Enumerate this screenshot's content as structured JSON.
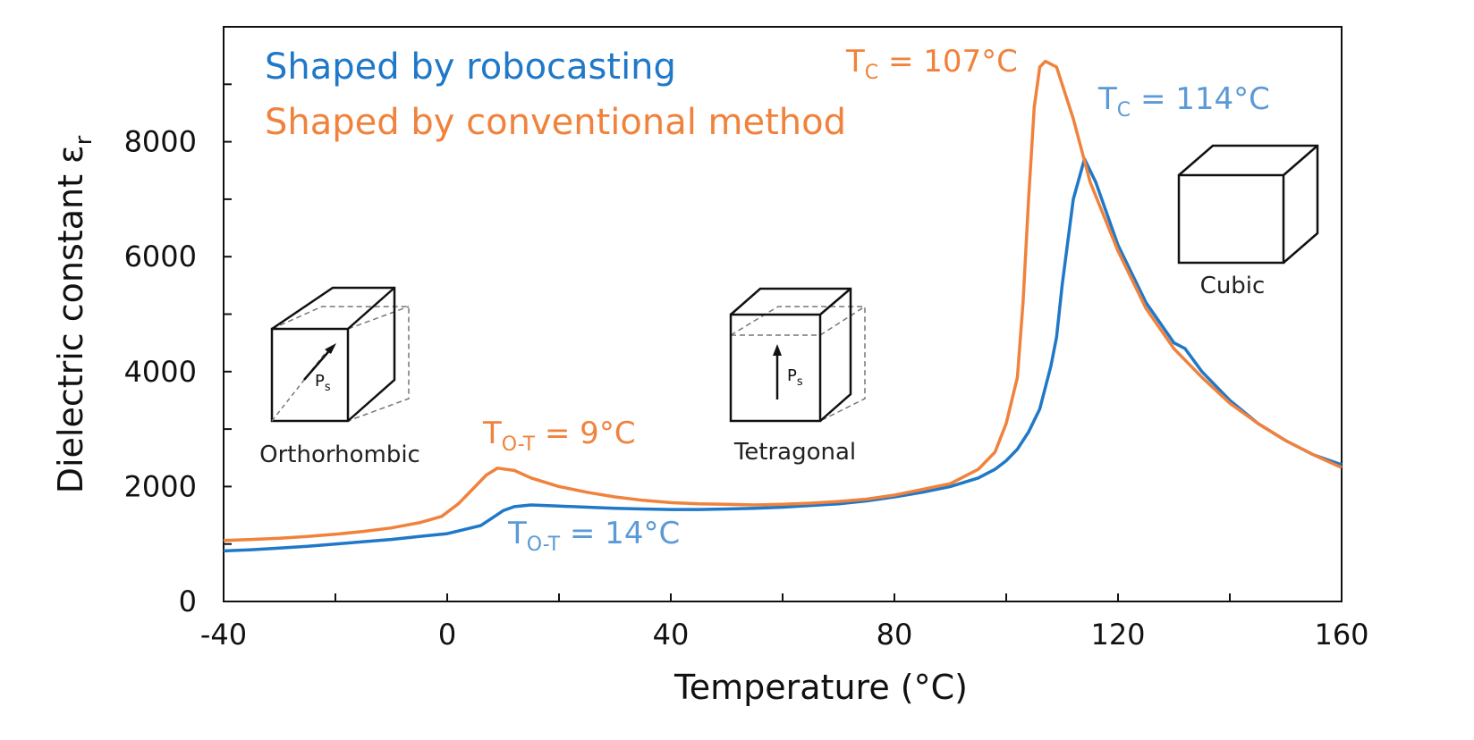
{
  "colors": {
    "robocasting": "#1f78c8",
    "conventional": "#f0823c",
    "axis": "#111111"
  },
  "chart_data": {
    "type": "line",
    "xlabel": "Temperature (°C)",
    "ylabel_main": "Dielectric constant ε",
    "ylabel_sub": "r",
    "xlim": [
      -40,
      160
    ],
    "ylim": [
      0,
      10000
    ],
    "x_ticks": [
      -40,
      0,
      40,
      80,
      120,
      160
    ],
    "x_tick_labels": [
      "-40",
      "0",
      "40",
      "80",
      "120",
      "160"
    ],
    "y_ticks": [
      0,
      2000,
      4000,
      6000,
      8000
    ],
    "y_tick_labels": [
      "0",
      "2000",
      "4000",
      "6000",
      "8000"
    ],
    "grid": false,
    "legend_position": "top-left",
    "series": [
      {
        "name": "Shaped by robocasting",
        "color": "#1f78c8",
        "x": [
          -40,
          -35,
          -30,
          -25,
          -20,
          -15,
          -10,
          -5,
          0,
          3,
          6,
          8,
          10,
          12,
          15,
          20,
          25,
          30,
          35,
          40,
          45,
          50,
          55,
          60,
          65,
          70,
          75,
          80,
          85,
          90,
          95,
          98,
          100,
          102,
          104,
          106,
          108,
          109,
          110,
          112,
          114,
          116,
          120,
          125,
          130,
          132,
          135,
          140,
          145,
          150,
          155,
          160
        ],
        "y": [
          880,
          900,
          930,
          960,
          1000,
          1040,
          1080,
          1130,
          1180,
          1250,
          1320,
          1450,
          1580,
          1650,
          1680,
          1660,
          1640,
          1620,
          1610,
          1600,
          1600,
          1610,
          1620,
          1640,
          1670,
          1700,
          1750,
          1820,
          1900,
          2000,
          2150,
          2300,
          2450,
          2650,
          2950,
          3350,
          4100,
          4600,
          5500,
          7000,
          7700,
          7300,
          6200,
          5200,
          4500,
          4400,
          4000,
          3500,
          3100,
          2800,
          2550,
          2380
        ]
      },
      {
        "name": "Shaped by conventional method",
        "color": "#f0823c",
        "x": [
          -40,
          -35,
          -30,
          -25,
          -20,
          -15,
          -10,
          -5,
          -1,
          2,
          5,
          7,
          9,
          12,
          15,
          20,
          25,
          30,
          35,
          40,
          45,
          50,
          55,
          60,
          65,
          70,
          75,
          80,
          85,
          90,
          95,
          98,
          100,
          102,
          103,
          104,
          105,
          106,
          107,
          109,
          112,
          115,
          120,
          125,
          130,
          135,
          140,
          145,
          150,
          155,
          160
        ],
        "y": [
          1060,
          1080,
          1100,
          1130,
          1170,
          1220,
          1280,
          1370,
          1480,
          1700,
          2000,
          2200,
          2320,
          2280,
          2150,
          2000,
          1900,
          1820,
          1760,
          1720,
          1700,
          1690,
          1680,
          1690,
          1710,
          1740,
          1780,
          1850,
          1950,
          2050,
          2300,
          2600,
          3100,
          3900,
          5200,
          7000,
          8600,
          9300,
          9400,
          9300,
          8400,
          7300,
          6100,
          5100,
          4400,
          3900,
          3450,
          3100,
          2800,
          2550,
          2330
        ]
      }
    ]
  },
  "legend": {
    "robocasting": "Shaped by robocasting",
    "conventional": "Shaped by conventional method"
  },
  "annotations": {
    "tc_conv_main": "T",
    "tc_conv_sub": "C",
    "tc_conv_rest": " = 107°C",
    "tc_robo_main": "T",
    "tc_robo_sub": "C",
    "tc_robo_rest": " = 114°C",
    "tot_conv_main": "T",
    "tot_conv_sub": "O-T",
    "tot_conv_rest": " = 9°C",
    "tot_robo_main": "T",
    "tot_robo_sub": "O-T",
    "tot_robo_rest": " = 14°C"
  },
  "crystals": {
    "orthorhombic": "Orthorhombic",
    "tetragonal": "Tetragonal",
    "cubic": "Cubic",
    "ps_main": "P",
    "ps_sub": "s"
  }
}
